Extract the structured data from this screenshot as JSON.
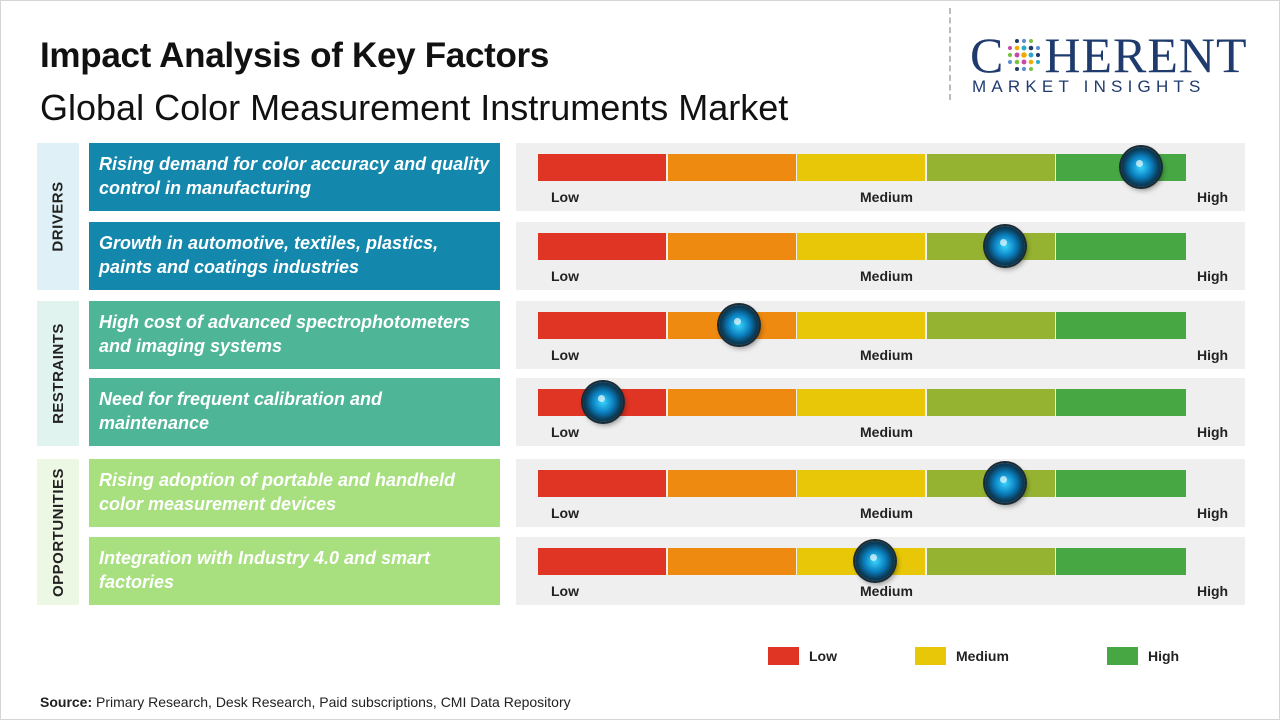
{
  "title": "Impact Analysis of Key Factors",
  "subtitle": "Global Color Measurement Instruments Market",
  "logo": {
    "main_left": "C",
    "main_right": "HERENT",
    "sub": "MARKET INSIGHTS"
  },
  "scale_labels": {
    "low": "Low",
    "medium": "Medium",
    "high": "High"
  },
  "colors": {
    "segments": [
      "#e03424",
      "#ef8a11",
      "#e7c707",
      "#95b331",
      "#47a843"
    ],
    "drivers": "#1487ac",
    "restraints": "#4eb596",
    "opportunities": "#a8df7f",
    "category_bg_drivers": "#dff1f6",
    "category_bg_restraints": "#e1f3ee",
    "category_bg_opportunities": "#edf8e4"
  },
  "categories": [
    {
      "name": "DRIVERS"
    },
    {
      "name": "RESTRAINTS"
    },
    {
      "name": "OPPORTUNITIES"
    }
  ],
  "chart_data": {
    "type": "bar",
    "title": "Impact Analysis of Key Factors",
    "subtitle": "Global Color Measurement Instruments Market",
    "scale": [
      "Low",
      "Medium",
      "High"
    ],
    "range": [
      0,
      1
    ],
    "factors": [
      {
        "category": "DRIVERS",
        "text": "Rising demand for color accuracy and quality control in manufacturing",
        "impact": 0.93
      },
      {
        "category": "DRIVERS",
        "text": "Growth in automotive, textiles, plastics, paints and coatings industries",
        "impact": 0.72
      },
      {
        "category": "RESTRAINTS",
        "text": "High cost of advanced spectrophotometers and imaging systems",
        "impact": 0.31
      },
      {
        "category": "RESTRAINTS",
        "text": "Need for frequent calibration and maintenance",
        "impact": 0.1
      },
      {
        "category": "OPPORTUNITIES",
        "text": "Rising adoption of portable and handheld color measurement devices",
        "impact": 0.72
      },
      {
        "category": "OPPORTUNITIES",
        "text": "Integration with Industry 4.0 and smart factories",
        "impact": 0.52
      }
    ],
    "legend": [
      {
        "label": "Low",
        "color": "#e03424"
      },
      {
        "label": "Medium",
        "color": "#e7c707"
      },
      {
        "label": "High",
        "color": "#47a843"
      }
    ]
  },
  "source": {
    "label": "Source:",
    "text": "Primary Research, Desk Research, Paid subscriptions, CMI Data Repository"
  }
}
